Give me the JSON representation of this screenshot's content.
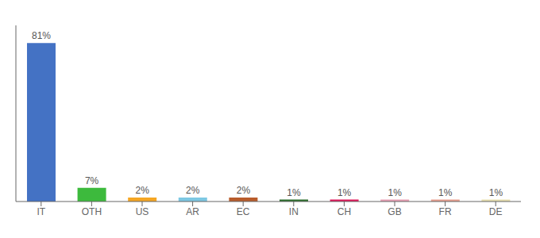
{
  "chart_data": {
    "type": "bar",
    "categories": [
      "IT",
      "OTH",
      "US",
      "AR",
      "EC",
      "IN",
      "CH",
      "GB",
      "FR",
      "DE"
    ],
    "values": [
      81,
      7,
      2,
      2,
      2,
      1,
      1,
      1,
      1,
      1
    ],
    "value_labels": [
      "81%",
      "7%",
      "2%",
      "2%",
      "2%",
      "1%",
      "1%",
      "1%",
      "1%",
      "1%"
    ],
    "colors": [
      "#4472c4",
      "#3dba3d",
      "#f5a623",
      "#7ec8e3",
      "#b85c2b",
      "#2d6e2d",
      "#e0185a",
      "#e8a0b4",
      "#e8a090",
      "#e8e0b0"
    ],
    "ylim": [
      0,
      90
    ],
    "grid": false,
    "data_labels": true,
    "tick_labels": "x"
  }
}
